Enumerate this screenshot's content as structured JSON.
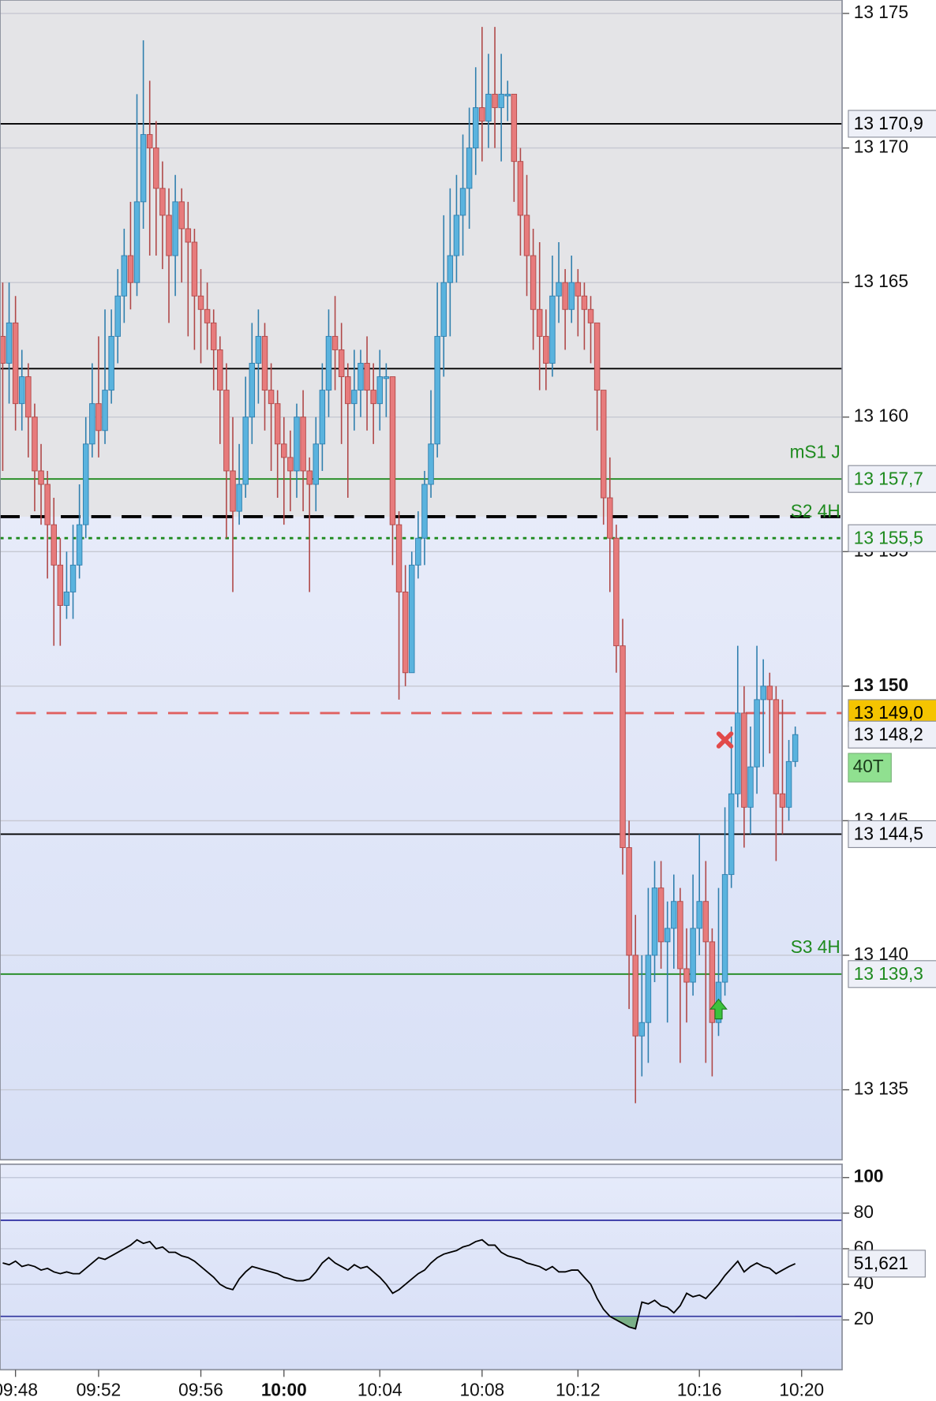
{
  "chart_data": [
    {
      "type": "candlestick",
      "categories": [
        null,
        null,
        "09:48",
        null,
        null,
        null,
        null,
        null,
        null,
        null,
        null,
        null,
        null,
        null,
        null,
        "09:52",
        null,
        null,
        null,
        null,
        null,
        null,
        null,
        null,
        null,
        null,
        null,
        null,
        null,
        null,
        null,
        "09:56",
        null,
        null,
        null,
        null,
        null,
        null,
        null,
        null,
        null,
        null,
        null,
        null,
        {
          "label": "10:00",
          "bold": true
        },
        null,
        null,
        null,
        null,
        null,
        null,
        null,
        null,
        null,
        null,
        null,
        null,
        null,
        null,
        "10:04",
        null,
        null,
        null,
        null,
        null,
        null,
        null,
        null,
        null,
        null,
        null,
        null,
        null,
        null,
        null,
        "10:08",
        null,
        null,
        null,
        null,
        null,
        null,
        null,
        null,
        null,
        null,
        null,
        null,
        null,
        null,
        "10:12",
        null,
        null,
        null,
        null,
        null,
        null,
        null,
        null,
        null,
        null,
        null,
        null,
        null,
        null,
        null,
        null,
        null,
        null,
        "10:16",
        null,
        null,
        null,
        null,
        null,
        null,
        null,
        null,
        null,
        null,
        null,
        null,
        null,
        null,
        null,
        "10:20"
      ],
      "open": [
        13163,
        13162,
        13163.5,
        13160.5,
        13161.5,
        13160,
        13158,
        13157.5,
        13156,
        13154.5,
        13153,
        13153.5,
        13154.5,
        13156,
        13159,
        13160.5,
        13159.5,
        13161,
        13163,
        13164.5,
        13166,
        13165,
        13168,
        13170.5,
        13170,
        13168.5,
        13167.5,
        13166,
        13168,
        13167,
        13166.5,
        13164.5,
        13164,
        13163.5,
        13162.5,
        13161,
        13158,
        13156.5,
        13157.5,
        13160,
        13162,
        13163,
        13161,
        13160.5,
        13159,
        13158.5,
        13158,
        13160,
        13158,
        13157.5,
        13159,
        13161,
        13163,
        13162.5,
        13161.5,
        13160.5,
        13161,
        13162,
        13161,
        13160.5,
        13161.5,
        13161.5,
        13156,
        13153.5,
        13150.5,
        13154.5,
        13155.5,
        13157.5,
        13159,
        13163,
        13165,
        13166,
        13167.5,
        13168.5,
        13170,
        13171.5,
        13171,
        13172,
        13171.5,
        13172,
        13172,
        13169.5,
        13167.5,
        13166,
        13164,
        13163,
        13162,
        13164.5,
        13165,
        13164,
        13165,
        13164.5,
        13164,
        13163.5,
        13161,
        13157,
        13155.5,
        13151.5,
        13144,
        13140,
        13137,
        13137.5,
        13140,
        13142.5,
        13140.5,
        13141,
        13142,
        13139.5,
        13139,
        13141,
        13142,
        13140.5,
        13137.5,
        13139,
        13143,
        13146,
        13149,
        13145.5,
        13147,
        13149.5,
        13150,
        13149.5,
        13146,
        13145.5,
        13147.2,
        null
      ],
      "high": [
        13165,
        13165,
        13164.5,
        13162.5,
        13162,
        13160.5,
        13159,
        13158,
        13157,
        13155.5,
        13155,
        13156,
        13157.5,
        13160,
        13162,
        13163,
        13164,
        13164,
        13165.5,
        13167,
        13168,
        13172,
        13174,
        13172.5,
        13171,
        13169.5,
        13168.5,
        13169,
        13168.5,
        13168,
        13167,
        13165.5,
        13165,
        13164,
        13163,
        13162,
        13160,
        13159,
        13161.5,
        13163.5,
        13164,
        13163.5,
        13162,
        13161,
        13160,
        13159.5,
        13160.5,
        13161,
        13158.5,
        13160,
        13162,
        13164,
        13164.5,
        13163.5,
        13162,
        13162.5,
        13162.5,
        13163,
        13162,
        13162.5,
        13162,
        13161.5,
        13156.5,
        13154.5,
        13155,
        13156.5,
        13158,
        13161,
        13165,
        13167.5,
        13168.5,
        13169,
        13170.5,
        13171.5,
        13173,
        13174.5,
        13173.5,
        13174.5,
        13173.5,
        13172.5,
        13172,
        13170,
        13169,
        13167,
        13166.5,
        13164,
        13166,
        13166.5,
        13165.5,
        13166,
        13165.5,
        13165,
        13164.5,
        13163.5,
        13161,
        13158.5,
        13156,
        13152.5,
        13145,
        13141.5,
        13140,
        13142.5,
        13143.5,
        13143.5,
        13142,
        13143,
        13142.5,
        13141,
        13143,
        13144.5,
        13143.5,
        13141,
        13142.5,
        13145.5,
        13148.5,
        13151.5,
        13150,
        13148.5,
        13151.5,
        13151,
        13150.5,
        13150,
        13149.5,
        13148,
        13148.5,
        null
      ],
      "low": [
        13158,
        13160.5,
        13159.5,
        13159.5,
        13158.5,
        13156.5,
        13156,
        13154,
        13151.5,
        13151.5,
        13152.5,
        13152.5,
        13154,
        13155.5,
        13158.5,
        13158.5,
        13159,
        13160.5,
        13162,
        13163.5,
        13164,
        13164.5,
        13167,
        13166,
        13166,
        13165.5,
        13163.5,
        13164.5,
        13165,
        13163,
        13162.5,
        13162,
        13162.5,
        13161,
        13159,
        13155.5,
        13153.5,
        13156,
        13157,
        13159,
        13160.5,
        13159.5,
        13158,
        13157,
        13156,
        13156.5,
        13157,
        13156.5,
        13153.5,
        13156.5,
        13158,
        13160,
        13161,
        13159,
        13157,
        13159.5,
        13160,
        13159.5,
        13159,
        13159.5,
        13160,
        13154.5,
        13149.5,
        13150,
        13150.5,
        13154,
        13154.5,
        13157,
        13158.5,
        13161.5,
        13163,
        13165,
        13166,
        13167,
        13169,
        13169.5,
        13170,
        13170,
        13169.5,
        13171,
        13168,
        13166,
        13164.5,
        13162.5,
        13161,
        13161,
        13161.5,
        13163.5,
        13162.5,
        13163.5,
        13163,
        13162.5,
        13162,
        13159.5,
        13156,
        13153.5,
        13150.5,
        13143,
        13138,
        13134.5,
        13135.5,
        13136,
        13139,
        13139.5,
        13137.5,
        13139.5,
        13136,
        13137.5,
        13138.5,
        13140,
        13136,
        13135.5,
        13137,
        13138.5,
        13142.5,
        13145.5,
        13144,
        13144.5,
        13146,
        13147,
        13147.5,
        13143.5,
        13144.5,
        13145,
        13147,
        null
      ],
      "close": [
        13162,
        13163.5,
        13160.5,
        13161.5,
        13160,
        13158,
        13157.5,
        13156,
        13154.5,
        13153,
        13153.5,
        13154.5,
        13156,
        13159,
        13160.5,
        13159.5,
        13161,
        13163,
        13164.5,
        13166,
        13165,
        13168,
        13170.5,
        13170,
        13168.5,
        13167.5,
        13166,
        13168,
        13167,
        13166.5,
        13164.5,
        13164,
        13163.5,
        13162.5,
        13161,
        13158,
        13156.5,
        13157.5,
        13160,
        13162,
        13163,
        13161,
        13160.5,
        13159,
        13158.5,
        13158,
        13160,
        13158,
        13157.5,
        13159,
        13161,
        13163,
        13162.5,
        13161.5,
        13160.5,
        13161,
        13162,
        13161,
        13160.5,
        13161.5,
        13161.5,
        13156,
        13153.5,
        13150.5,
        13154.5,
        13155.5,
        13157.5,
        13159,
        13163,
        13165,
        13166,
        13167.5,
        13168.5,
        13170,
        13171.5,
        13171,
        13172,
        13171.5,
        13172,
        13172,
        13169.5,
        13167.5,
        13166,
        13164,
        13163,
        13162,
        13164.5,
        13165,
        13164,
        13165,
        13164.5,
        13164,
        13163.5,
        13161,
        13157,
        13155.5,
        13151.5,
        13144,
        13140,
        13137,
        13137.5,
        13140,
        13142.5,
        13140.5,
        13141,
        13142,
        13139.5,
        13139,
        13141,
        13142,
        13140.5,
        13137.5,
        13139,
        13143,
        13146,
        13149,
        13145.5,
        13147,
        13149.5,
        13150,
        13149.5,
        13146,
        13145.5,
        13147.2,
        13148.2,
        null
      ],
      "up_color": "#5ab3de",
      "down_color": "#e77b7c",
      "ylim": [
        13132.4,
        13175.5
      ],
      "yticks": [
        {
          "value": 13135,
          "label": "13 135"
        },
        {
          "value": 13140,
          "label": "13 140"
        },
        {
          "value": 13145,
          "label": "13 145"
        },
        {
          "value": 13150,
          "label": "13 150",
          "bold": true
        },
        {
          "value": 13155,
          "label": "13 155"
        },
        {
          "value": 13160,
          "label": "13 160"
        },
        {
          "value": 13165,
          "label": "13 165"
        },
        {
          "value": 13170,
          "label": "13 170"
        },
        {
          "value": 13175,
          "label": "13 175"
        }
      ],
      "grid": true,
      "levels": [
        {
          "value": 13170.9,
          "label": "13 170,9",
          "color": "#000000",
          "style": "solid",
          "label_color": "#000000",
          "label_bg": "#eef0f8"
        },
        {
          "value": 13161.8,
          "color": "#000000",
          "style": "solid"
        },
        {
          "name": "mS1 J",
          "value": 13157.7,
          "label": "13 157,7",
          "color": "#1e8a1e",
          "style": "solid",
          "label_color": "#1e8a1e",
          "label_bg": "#eef0f8"
        },
        {
          "name": "S2 4H",
          "value": 13156.3,
          "color": "#000000",
          "style": "dashed",
          "name_color": "#1e8a1e",
          "shade_above": true
        },
        {
          "value": 13155.5,
          "label": "13 155,5",
          "color": "#1e8a1e",
          "style": "dotted",
          "label_color": "#1e8a1e",
          "label_bg": "#eef0f8"
        },
        {
          "value": 13149.0,
          "label": "13 149,0",
          "color": "#e06060",
          "style": "dashed",
          "label_color": "#000000",
          "label_bg": "#f5c400"
        },
        {
          "value": 13144.5,
          "label": "13 144,5",
          "color": "#000000",
          "style": "solid",
          "label_color": "#000000",
          "label_bg": "#eef0f8"
        },
        {
          "name": "S3 4H",
          "value": 13139.3,
          "label": "13 139,3",
          "color": "#1e8a1e",
          "style": "solid",
          "label_color": "#1e8a1e",
          "label_bg": "#eef0f8"
        }
      ],
      "last_label": "13 148,2",
      "tag": "40T",
      "signals": [
        {
          "kind": "sell",
          "index": 113,
          "price": 13148
        },
        {
          "kind": "buy",
          "index": 112,
          "price": 13138
        }
      ]
    },
    {
      "type": "line",
      "values": [
        52,
        51,
        53,
        50,
        51,
        50,
        48,
        49,
        47,
        46,
        47,
        46,
        46,
        49,
        52,
        55,
        54,
        56,
        58,
        60,
        62,
        65,
        63,
        64,
        60,
        61,
        58,
        58,
        56,
        55,
        53,
        50,
        47,
        44,
        40,
        38,
        37,
        43,
        47,
        50,
        49,
        48,
        47,
        46,
        44,
        43,
        42,
        42,
        43,
        47,
        52,
        55,
        52,
        50,
        48,
        51,
        49,
        50,
        47,
        44,
        40,
        35,
        37,
        40,
        43,
        46,
        48,
        52,
        55,
        57,
        58,
        59,
        61,
        62,
        64,
        65,
        62,
        62,
        58,
        56,
        55,
        54,
        52,
        51,
        50,
        48,
        50,
        47,
        47,
        48,
        48,
        44,
        40,
        32,
        26,
        22,
        20,
        18,
        16,
        15,
        30,
        29,
        31,
        28,
        27,
        24,
        28,
        35,
        33,
        34,
        32,
        36,
        40,
        45,
        49,
        53,
        47,
        50,
        52,
        50,
        49,
        46,
        48,
        50,
        51.621,
        null
      ],
      "color": "#000000",
      "ylim": [
        -8,
        107.5
      ],
      "yticks": [
        20,
        40,
        60,
        80,
        {
          "value": 100,
          "label": "100",
          "bold": true
        }
      ],
      "levels": [
        76,
        22
      ],
      "level_color": "#2a2aa0",
      "fill_below_color": "#6aa874",
      "last_label": "51,621"
    }
  ]
}
